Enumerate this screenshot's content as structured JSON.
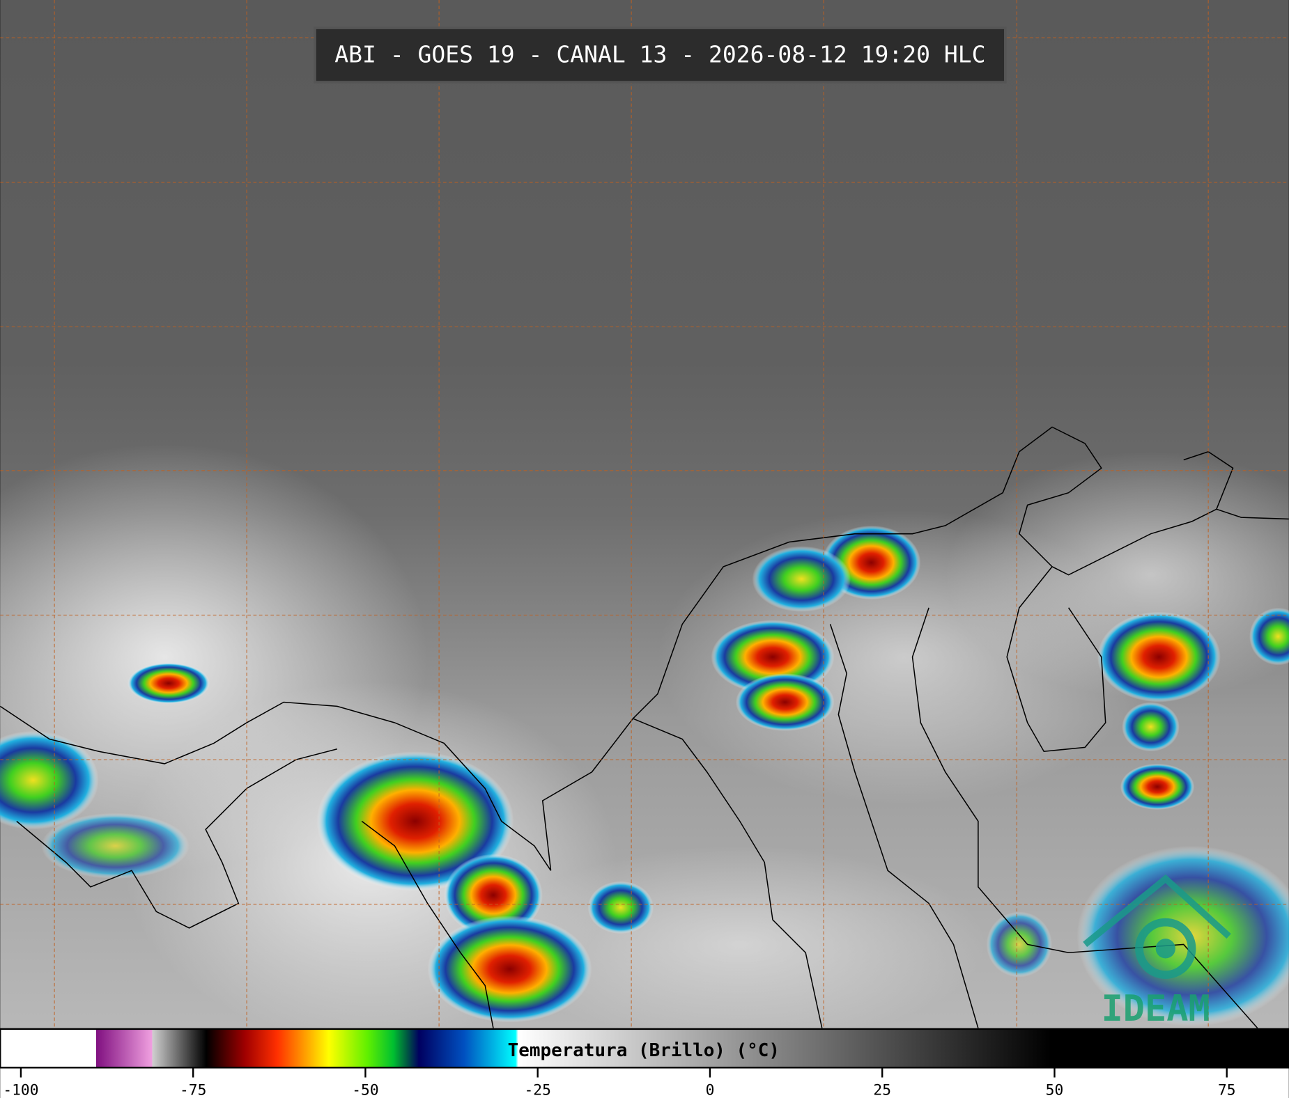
{
  "header": {
    "title": "ABI - GOES 19 - CANAL 13 - 2026-08-12 19:20 HLC"
  },
  "colorbar": {
    "label": "Temperatura (Brillo) (°C)",
    "range": [
      -103,
      84
    ],
    "ticks": [
      -100,
      -75,
      -50,
      -25,
      0,
      25,
      50,
      75
    ]
  },
  "logo": {
    "text": "IDEAM"
  }
}
